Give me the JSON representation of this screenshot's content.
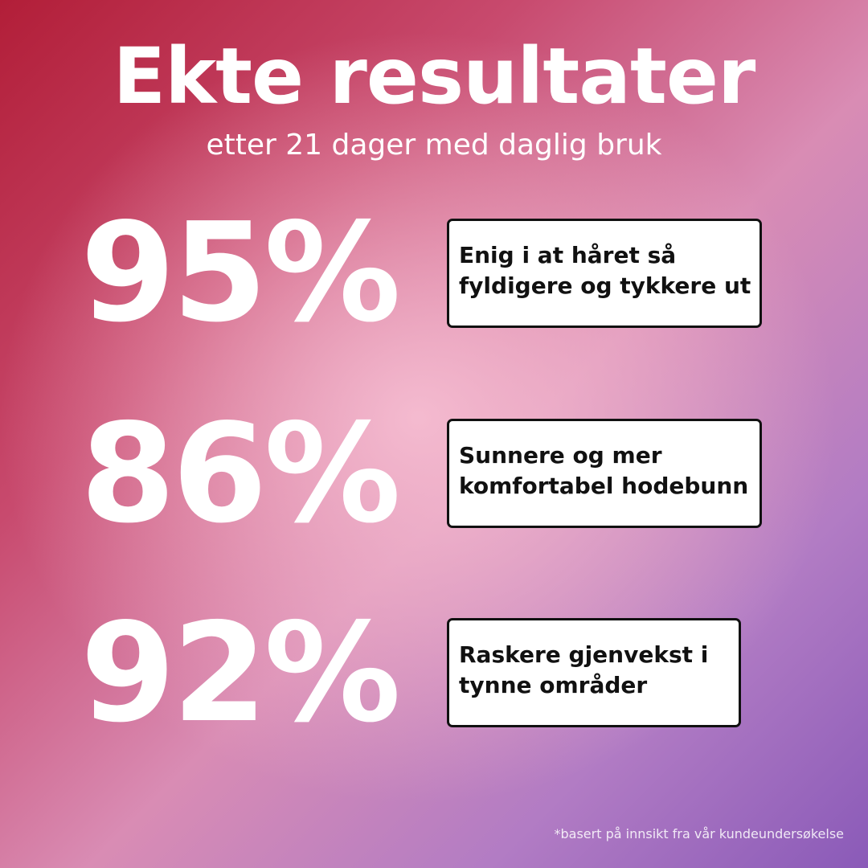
{
  "header": {
    "title": "Ekte resultater",
    "subtitle": "etter 21 dager med daglig bruk"
  },
  "stats": [
    {
      "value": "95%",
      "lines": [
        "Enig i at håret så",
        "fyldigere og tykkere ut"
      ]
    },
    {
      "value": "86%",
      "lines": [
        "Sunnere og mer",
        "komfortabel hodebunn"
      ]
    },
    {
      "value": "92%",
      "lines": [
        "Raskere gjenvekst i",
        "tynne områder"
      ]
    }
  ],
  "footnote": "*basert på innsikt fra vår kundeundersøkelse"
}
